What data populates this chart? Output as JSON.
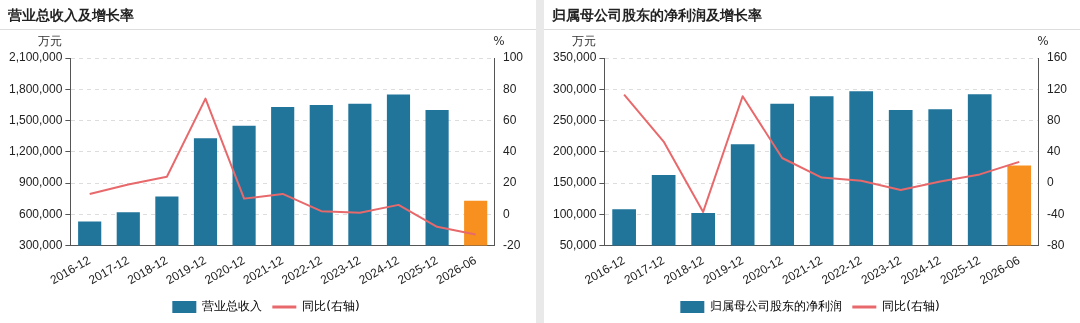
{
  "chart_data": [
    {
      "type": "bar",
      "title": "营业总收入及增长率",
      "ylabel": "万元",
      "y2label": "%",
      "categories": [
        "2016-12",
        "2017-12",
        "2018-12",
        "2019-12",
        "2020-12",
        "2021-12",
        "2022-12",
        "2023-12",
        "2024-12",
        "2025-12",
        "2026-06"
      ],
      "series": [
        {
          "name": "营业总收入",
          "color": "#21759b",
          "colors": [
            "#21759b",
            "#21759b",
            "#21759b",
            "#21759b",
            "#21759b",
            "#21759b",
            "#21759b",
            "#21759b",
            "#21759b",
            "#21759b",
            "#f7901e"
          ],
          "values": [
            530000,
            620000,
            770000,
            1330000,
            1450000,
            1630000,
            1650000,
            1660000,
            1750000,
            1600000,
            730000
          ]
        },
        {
          "name": "同比(右轴)",
          "type": "line",
          "axis": "y2",
          "color": "#e8696b",
          "values": [
            13,
            19,
            24,
            74,
            10,
            13,
            2,
            1,
            6,
            -8,
            -13
          ]
        }
      ],
      "ylim": [
        300000,
        2100000
      ],
      "yticks": [
        {
          "value": 300000,
          "label": "300,000"
        },
        {
          "value": 600000,
          "label": "600,000"
        },
        {
          "value": 900000,
          "label": "900,000"
        },
        {
          "value": 1200000,
          "label": "1,200,000"
        },
        {
          "value": 1500000,
          "label": "1,500,000"
        },
        {
          "value": 1800000,
          "label": "1,800,000"
        },
        {
          "value": 2100000,
          "label": "2,100,000"
        }
      ],
      "y2lim": [
        -20,
        100
      ],
      "y2ticks": [
        -20,
        0,
        20,
        40,
        60,
        80,
        100
      ],
      "grid": "y",
      "legend": "bottom",
      "marker": "none",
      "line_style": "solid"
    },
    {
      "type": "bar",
      "title": "归属母公司股东的净利润及增长率",
      "ylabel": "万元",
      "y2label": "%",
      "categories": [
        "2016-12",
        "2017-12",
        "2018-12",
        "2019-12",
        "2020-12",
        "2021-12",
        "2022-12",
        "2023-12",
        "2024-12",
        "2025-12",
        "2026-06"
      ],
      "series": [
        {
          "name": "归属母公司股东的净利润",
          "color": "#21759b",
          "colors": [
            "#21759b",
            "#21759b",
            "#21759b",
            "#21759b",
            "#21759b",
            "#21759b",
            "#21759b",
            "#21759b",
            "#21759b",
            "#21759b",
            "#f7901e"
          ],
          "values": [
            108000,
            163000,
            102000,
            212000,
            277000,
            289000,
            297000,
            267000,
            268000,
            292000,
            178000
          ]
        },
        {
          "name": "同比(右轴)",
          "type": "line",
          "axis": "y2",
          "color": "#e8696b",
          "values": [
            113,
            53,
            -37,
            111,
            32,
            7,
            3,
            -9,
            2,
            11,
            27
          ]
        }
      ],
      "ylim": [
        50000,
        350000
      ],
      "yticks": [
        {
          "value": 50000,
          "label": "50,000"
        },
        {
          "value": 100000,
          "label": "100,000"
        },
        {
          "value": 150000,
          "label": "150,000"
        },
        {
          "value": 200000,
          "label": "200,000"
        },
        {
          "value": 250000,
          "label": "250,000"
        },
        {
          "value": 300000,
          "label": "300,000"
        },
        {
          "value": 350000,
          "label": "350,000"
        }
      ],
      "y2lim": [
        -80,
        160
      ],
      "y2ticks": [
        -80,
        -40,
        0,
        40,
        80,
        120,
        160
      ],
      "grid": "y",
      "legend": "bottom",
      "marker": "none",
      "line_style": "solid"
    }
  ]
}
